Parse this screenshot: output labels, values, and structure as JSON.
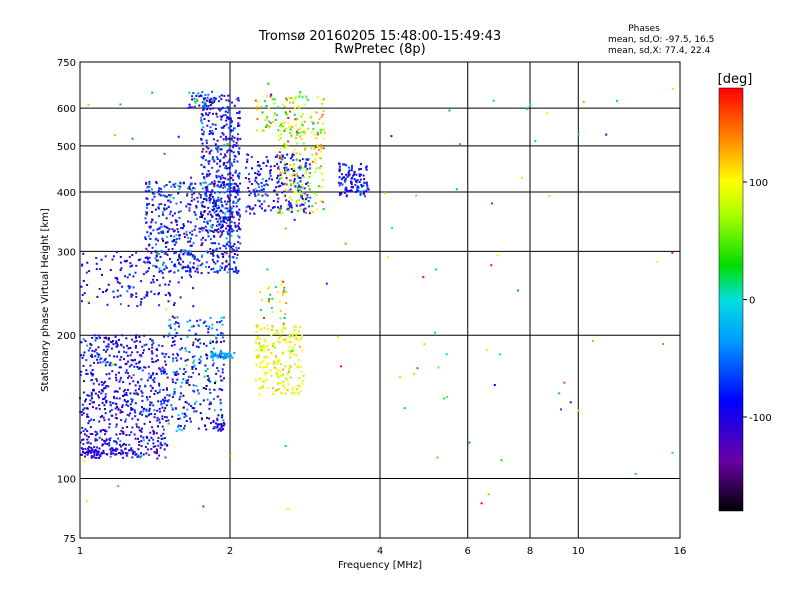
{
  "chart_data": {
    "type": "scatter",
    "title": "Tromsø 20160205 15:48:00-15:49:43",
    "subtitle": "RwPretec (8p)",
    "xlabel": "Frequency [MHz]",
    "ylabel": "Stationary phase Virtual Height [km]",
    "x_scale": "log",
    "y_scale": "log",
    "xlim": [
      1,
      16
    ],
    "ylim": [
      75,
      750
    ],
    "x_ticks": [
      1,
      2,
      4,
      6,
      8,
      10,
      16
    ],
    "x_tick_labels": [
      "1",
      "2",
      "4",
      "6",
      "8",
      "10",
      "16"
    ],
    "y_ticks": [
      75,
      100,
      200,
      300,
      400,
      500,
      600,
      750
    ],
    "y_tick_labels": [
      "75",
      "100",
      "200",
      "300",
      "400",
      "500",
      "600",
      "750"
    ],
    "grid": true,
    "grid_x": [
      2,
      4,
      6,
      8,
      10
    ],
    "grid_y": [
      100,
      200,
      300,
      400,
      500,
      600
    ],
    "stats": {
      "header": "Phases",
      "line_o": "mean, sd,O: -97.5, 16.5",
      "line_x": "mean, sd,X:  77.4, 22.4"
    },
    "colorbar": {
      "label": "[deg]",
      "range": [
        -180,
        180
      ],
      "ticks": [
        100,
        0,
        -100
      ],
      "tick_labels": [
        "100",
        "0",
        "-100"
      ],
      "colormap": "rainbow"
    },
    "clusters": [
      {
        "fmin": 1.0,
        "fmax": 1.5,
        "hmin": 110,
        "hmax": 200,
        "n": 650,
        "phase": -95,
        "sd": 25
      },
      {
        "fmin": 1.5,
        "fmax": 1.95,
        "hmin": 125,
        "hmax": 220,
        "n": 280,
        "phase": -80,
        "sd": 45
      },
      {
        "fmin": 1.0,
        "fmax": 1.3,
        "hmin": 112,
        "hmax": 116,
        "n": 60,
        "phase": -105,
        "sd": 8
      },
      {
        "fmin": 1.0,
        "fmax": 1.7,
        "hmin": 230,
        "hmax": 300,
        "n": 150,
        "phase": -95,
        "sd": 20
      },
      {
        "fmin": 1.35,
        "fmax": 2.1,
        "hmin": 270,
        "hmax": 420,
        "n": 550,
        "phase": -85,
        "sd": 35
      },
      {
        "fmin": 1.75,
        "fmax": 2.1,
        "hmin": 330,
        "hmax": 640,
        "n": 420,
        "phase": -85,
        "sd": 30
      },
      {
        "fmin": 2.15,
        "fmax": 2.9,
        "hmin": 360,
        "hmax": 480,
        "n": 230,
        "phase": -85,
        "sd": 25
      },
      {
        "fmin": 2.5,
        "fmax": 3.1,
        "hmin": 360,
        "hmax": 560,
        "n": 160,
        "phase": 85,
        "sd": 35
      },
      {
        "fmin": 2.25,
        "fmax": 2.8,
        "hmin": 150,
        "hmax": 210,
        "n": 200,
        "phase": 95,
        "sd": 15
      },
      {
        "fmin": 2.3,
        "fmax": 2.6,
        "hmin": 210,
        "hmax": 260,
        "n": 30,
        "phase": 90,
        "sd": 60
      },
      {
        "fmin": 2.25,
        "fmax": 3.1,
        "hmin": 530,
        "hmax": 650,
        "n": 110,
        "phase": 70,
        "sd": 50
      },
      {
        "fmin": 3.3,
        "fmax": 3.8,
        "hmin": 390,
        "hmax": 460,
        "n": 110,
        "phase": -85,
        "sd": 20
      },
      {
        "fmin": 1.82,
        "fmax": 2.05,
        "hmin": 179,
        "hmax": 184,
        "n": 40,
        "phase": -30,
        "sd": 8
      },
      {
        "fmin": 1.85,
        "fmax": 1.95,
        "hmin": 126,
        "hmax": 131,
        "n": 15,
        "phase": -100,
        "sd": 5
      },
      {
        "fmin": 1.65,
        "fmax": 1.85,
        "hmin": 600,
        "hmax": 650,
        "n": 40,
        "phase": -60,
        "sd": 50
      },
      {
        "fmin": 4.0,
        "fmax": 16.0,
        "hmin": 85,
        "hmax": 660,
        "n": 55,
        "phase": 60,
        "sd": 90
      },
      {
        "fmin": 1.0,
        "fmax": 3.5,
        "hmin": 85,
        "hmax": 700,
        "n": 40,
        "phase": 0,
        "sd": 100
      }
    ]
  }
}
